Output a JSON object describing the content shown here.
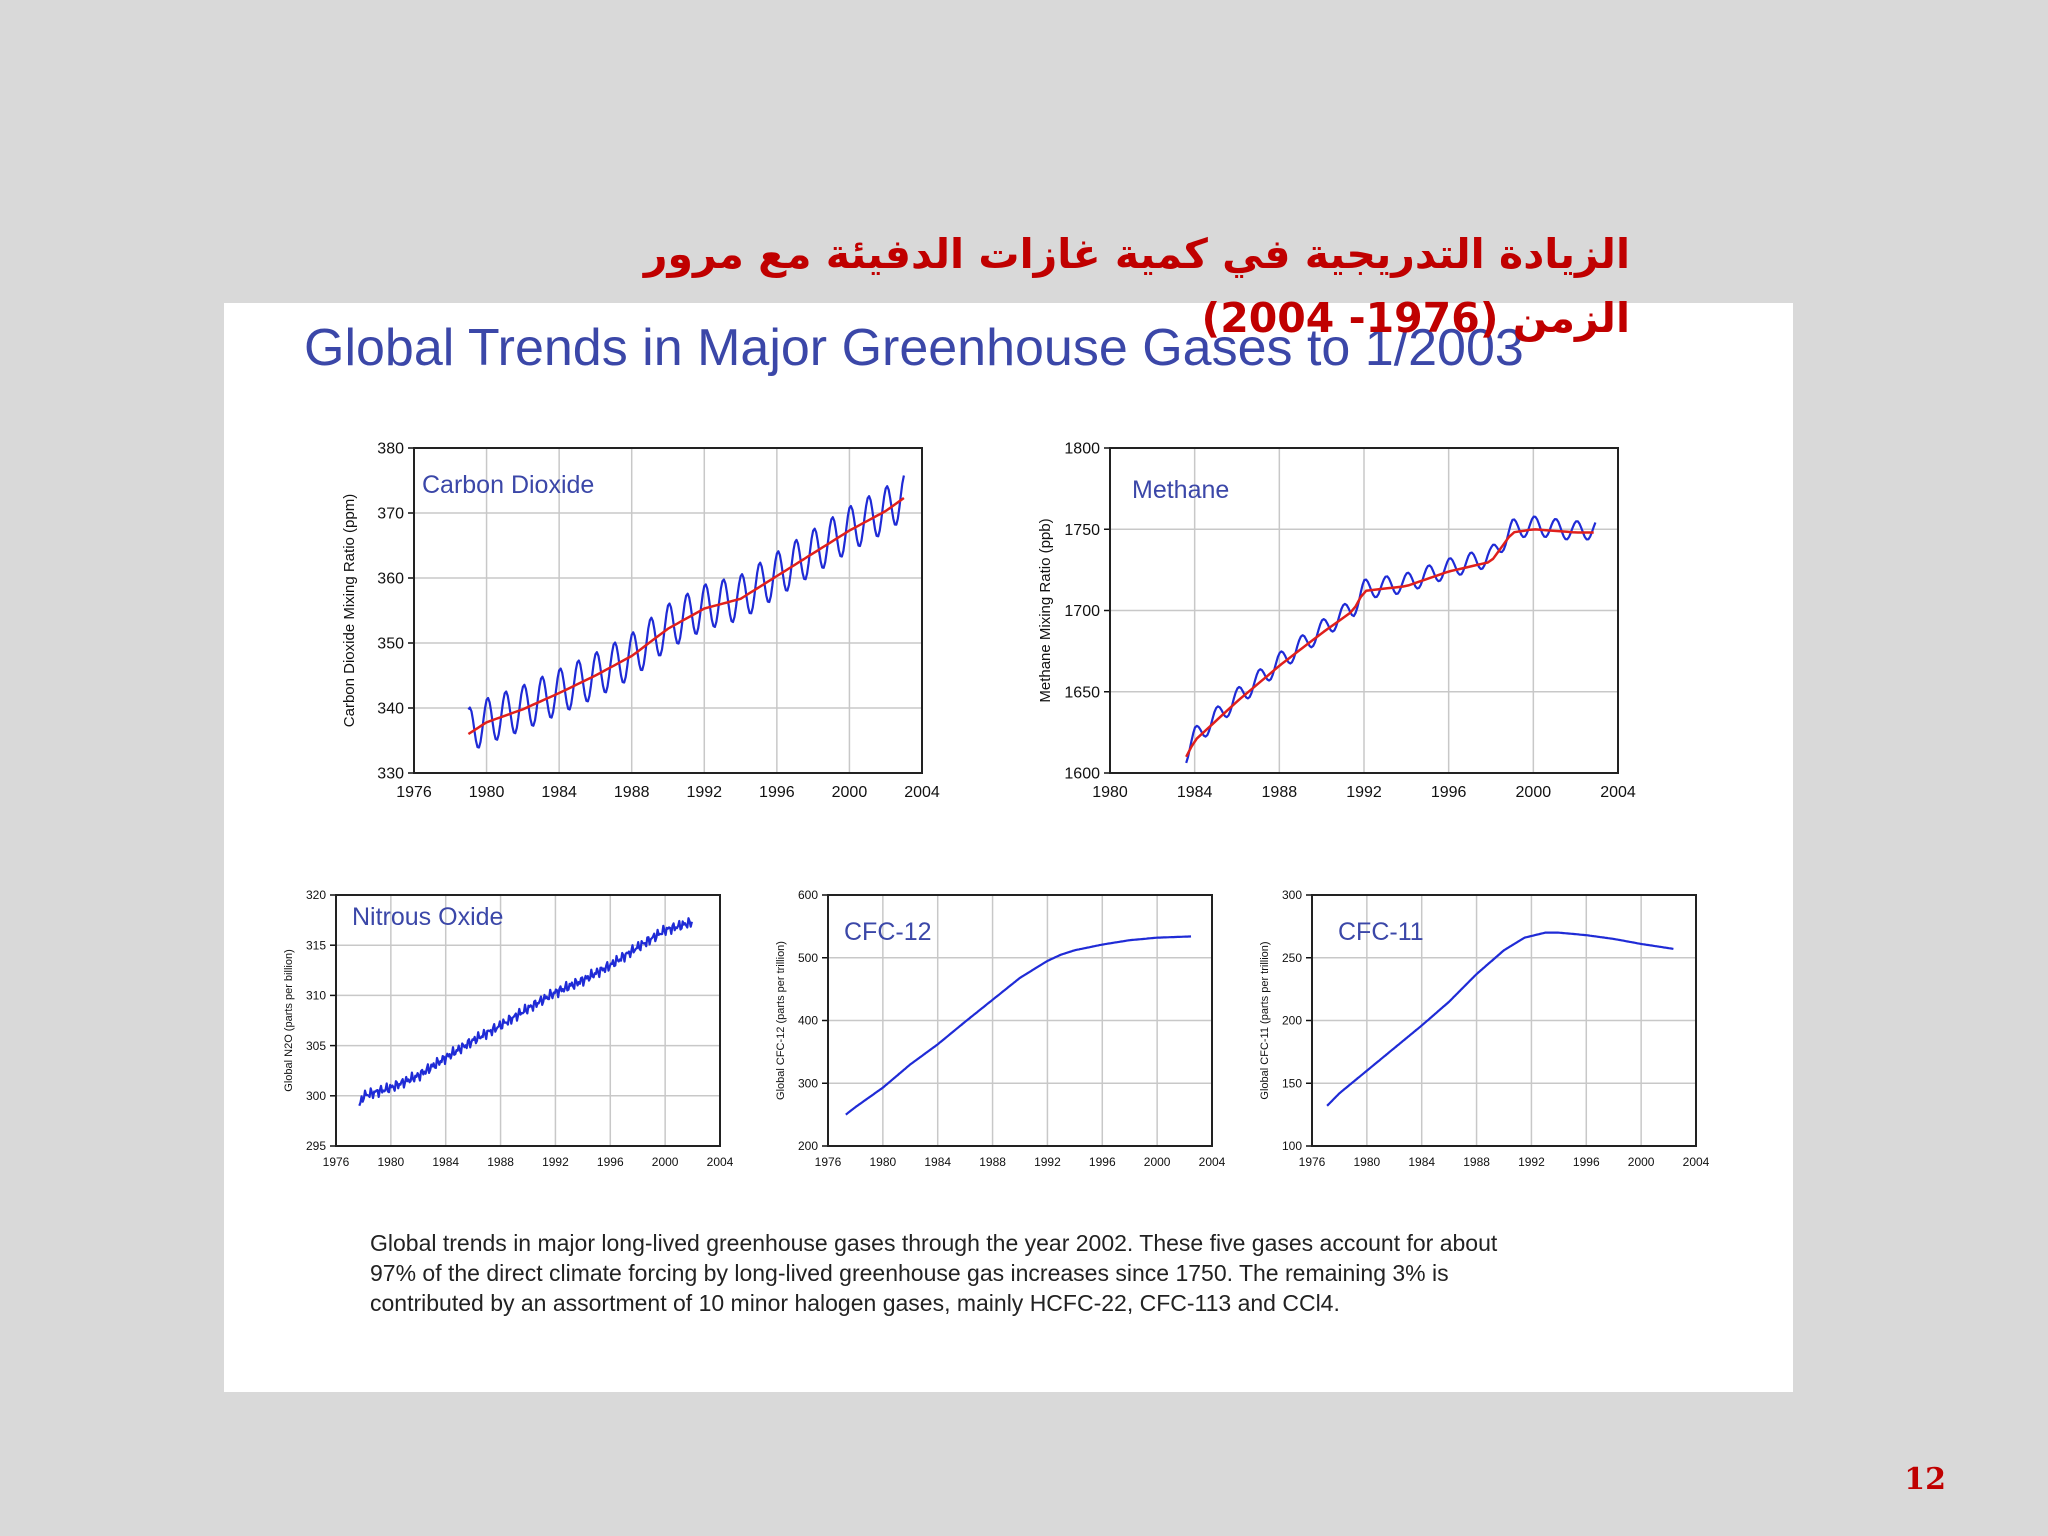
{
  "slide": {
    "title_line1": "الزيادة التدريجية في كمية غازات الدفيئة  مع مرور",
    "title_line2": "الزمن (1976- 2004)",
    "page_number": "12"
  },
  "figure": {
    "heading": "Global Trends in Major Greenhouse Gases to 1/2003",
    "caption_lines": [
      "Global trends in major long-lived greenhouse gases through the year 2002.  These five gases account for about",
      "97% of the direct climate forcing by long-lived greenhouse gas increases since 1750.  The remaining 3% is",
      "contributed by an assortment of 10 minor halogen gases, mainly HCFC-22, CFC-113 and CCl4."
    ]
  },
  "colors": {
    "background": "#d9d9d9",
    "title": "#c00000",
    "heading": "#3b47a8",
    "series_blue": "#1f2bd6",
    "trend_red": "#e0201c",
    "grid": "#c8c8c8"
  },
  "chart_data": [
    {
      "type": "line",
      "title": "Carbon Dioxide",
      "ylabel": "Carbon Dioxide Mixing Ratio (ppm)",
      "xlim": [
        1976,
        2004
      ],
      "ylim": [
        330,
        380
      ],
      "xticks": [
        "1976",
        "1980",
        "1984",
        "1988",
        "1992",
        "1996",
        "2000",
        "2004"
      ],
      "yticks": [
        "330",
        "340",
        "350",
        "360",
        "370",
        "380"
      ],
      "grid": true,
      "seasonal_amplitude": 3.5,
      "series": [
        {
          "role": "monthly",
          "color": "#1f2bd6",
          "x": [
            1979.0,
            1980,
            1982,
            1984,
            1986,
            1988,
            1990,
            1992,
            1994,
            1996,
            1998,
            2000,
            2002,
            2003.0
          ],
          "y": [
            336.5,
            338.0,
            340.0,
            342.5,
            345.0,
            348.0,
            352.5,
            355.5,
            357.0,
            360.5,
            364.0,
            367.5,
            370.5,
            372.5
          ]
        },
        {
          "role": "trend",
          "color": "#e0201c",
          "x": [
            1979.0,
            1980,
            1982,
            1984,
            1986,
            1988,
            1990,
            1992,
            1994,
            1996,
            1998,
            2000,
            2002,
            2003.0
          ],
          "y": [
            336.0,
            337.8,
            339.8,
            342.3,
            345.0,
            348.0,
            352.2,
            355.3,
            356.8,
            360.3,
            363.8,
            367.3,
            370.3,
            372.3
          ]
        }
      ]
    },
    {
      "type": "line",
      "title": "Methane",
      "ylabel": "Methane Mixing Ratio (ppb)",
      "xlim": [
        1980,
        2004
      ],
      "ylim": [
        1600,
        1800
      ],
      "xticks": [
        "1980",
        "1984",
        "1988",
        "1992",
        "1996",
        "2000",
        "2004"
      ],
      "yticks": [
        "1600",
        "1650",
        "1700",
        "1750",
        "1800"
      ],
      "grid": true,
      "seasonal_amplitude": 6,
      "series": [
        {
          "role": "monthly",
          "color": "#1f2bd6",
          "x": [
            1983.6,
            1984,
            1986,
            1988,
            1990,
            1991.5,
            1992,
            1994,
            1996,
            1998,
            1999,
            2000,
            2002,
            2003.0
          ],
          "y": [
            1612,
            1622,
            1646,
            1668,
            1688,
            1702,
            1713,
            1717,
            1726,
            1733,
            1750,
            1752,
            1749,
            1750
          ]
        },
        {
          "role": "trend",
          "color": "#e0201c",
          "x": [
            1983.6,
            1984,
            1986,
            1988,
            1990,
            1991.5,
            1992,
            1994,
            1996,
            1998,
            1999,
            2000,
            2002,
            2003.0
          ],
          "y": [
            1610,
            1620,
            1644,
            1666,
            1686,
            1700,
            1712,
            1715,
            1724,
            1730,
            1748,
            1750,
            1748,
            1748
          ]
        }
      ]
    },
    {
      "type": "line",
      "title": "Nitrous Oxide",
      "ylabel": "Global N2O (parts per billion)",
      "xlim": [
        1976,
        2004
      ],
      "ylim": [
        295,
        320
      ],
      "xticks": [
        "1976",
        "1980",
        "1984",
        "1988",
        "1992",
        "1996",
        "2000",
        "2004"
      ],
      "yticks": [
        "295",
        "300",
        "305",
        "310",
        "315",
        "320"
      ],
      "grid": true,
      "noise": 0.6,
      "series": [
        {
          "role": "monthly",
          "color": "#1f2bd6",
          "x": [
            1977.7,
            1978,
            1980,
            1982,
            1984,
            1986,
            1988,
            1990,
            1992,
            1994,
            1996,
            1998,
            2000,
            2002
          ],
          "y": [
            299.0,
            300.0,
            300.8,
            302.0,
            303.8,
            305.5,
            307.0,
            308.7,
            310.3,
            311.5,
            313.0,
            314.8,
            316.5,
            317.3
          ]
        }
      ]
    },
    {
      "type": "line",
      "title": "CFC-12",
      "ylabel": "Global CFC-12 (parts per trillion)",
      "xlim": [
        1976,
        2004
      ],
      "ylim": [
        200,
        600
      ],
      "xticks": [
        "1976",
        "1980",
        "1984",
        "1988",
        "1992",
        "1996",
        "2000",
        "2004"
      ],
      "yticks": [
        "200",
        "300",
        "400",
        "500",
        "600"
      ],
      "grid": true,
      "series": [
        {
          "role": "monthly",
          "color": "#1f2bd6",
          "x": [
            1977.3,
            1978,
            1980,
            1982,
            1984,
            1986,
            1988,
            1990,
            1992,
            1993,
            1994,
            1996,
            1998,
            2000,
            2002.5
          ],
          "y": [
            250,
            262,
            293,
            330,
            362,
            398,
            433,
            468,
            495,
            505,
            512,
            521,
            528,
            532,
            534
          ]
        }
      ]
    },
    {
      "type": "line",
      "title": "CFC-11",
      "ylabel": "Global CFC-11 (parts per trillion)",
      "xlim": [
        1976,
        2004
      ],
      "ylim": [
        100,
        300
      ],
      "xticks": [
        "1976",
        "1980",
        "1984",
        "1988",
        "1992",
        "1996",
        "2000",
        "2004"
      ],
      "yticks": [
        "100",
        "150",
        "200",
        "250",
        "300"
      ],
      "grid": true,
      "series": [
        {
          "role": "monthly",
          "color": "#1f2bd6",
          "x": [
            1977.1,
            1978,
            1980,
            1982,
            1984,
            1986,
            1988,
            1990,
            1991.5,
            1993,
            1994,
            1996,
            1998,
            2000,
            2002.4
          ],
          "y": [
            132,
            142,
            160,
            178,
            196,
            215,
            237,
            256,
            266,
            270,
            270,
            268,
            265,
            261,
            257
          ]
        }
      ]
    }
  ]
}
